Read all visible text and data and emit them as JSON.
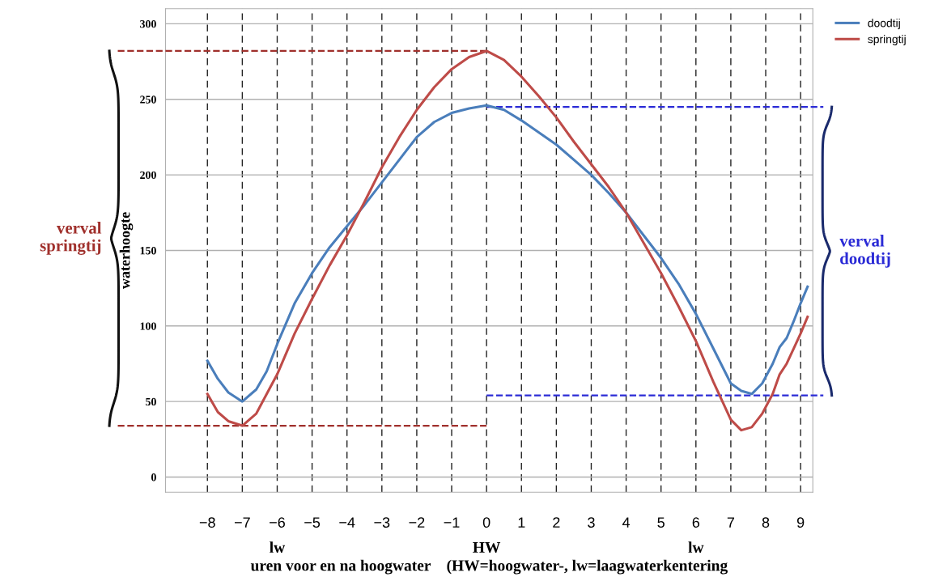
{
  "chart_data": {
    "type": "line",
    "xlabel": "uren voor en na hoogwater    (HW=hoogwater-, lw=laagwaterkentering",
    "ylabel": "waterhoogte",
    "x": [
      -8,
      -7.7,
      -7.4,
      -7,
      -6.6,
      -6.3,
      -6,
      -5.5,
      -5,
      -4.5,
      -4,
      -3.5,
      -3,
      -2.5,
      -2,
      -1.5,
      -1,
      -0.5,
      0,
      0.5,
      1,
      1.5,
      2,
      2.5,
      3,
      3.5,
      4,
      4.5,
      5,
      5.5,
      6,
      6.5,
      7,
      7.3,
      7.6,
      7.9,
      8.2,
      8.4,
      8.6,
      8.8,
      9,
      9.2
    ],
    "series": [
      {
        "name": "doodtij",
        "color": "#4a7ebb",
        "values": [
          77,
          65,
          56,
          50,
          58,
          70,
          88,
          115,
          135,
          152,
          166,
          180,
          195,
          210,
          225,
          235,
          241,
          244,
          246,
          243,
          236,
          228,
          220,
          210,
          200,
          188,
          175,
          160,
          145,
          128,
          108,
          85,
          62,
          57,
          55,
          62,
          75,
          86,
          92,
          103,
          115,
          126
        ]
      },
      {
        "name": "springtij",
        "color": "#be4b48",
        "values": [
          55,
          43,
          37,
          34,
          42,
          55,
          68,
          95,
          118,
          140,
          160,
          182,
          205,
          225,
          243,
          258,
          270,
          278,
          282,
          276,
          265,
          252,
          238,
          222,
          207,
          192,
          175,
          155,
          135,
          113,
          90,
          63,
          38,
          31,
          33,
          42,
          55,
          68,
          75,
          85,
          95,
          106
        ]
      }
    ],
    "xlim": [
      -9.2,
      9.35
    ],
    "xticks": [
      {
        "value": -8,
        "label": "−8"
      },
      {
        "value": -7,
        "label": "−7"
      },
      {
        "value": -6,
        "label": "−6"
      },
      {
        "value": -5,
        "label": "−5"
      },
      {
        "value": -4,
        "label": "−4"
      },
      {
        "value": -3,
        "label": "−3"
      },
      {
        "value": -2,
        "label": "−2"
      },
      {
        "value": -1,
        "label": "−1"
      },
      0,
      1,
      2,
      3,
      4,
      5,
      6,
      7,
      8,
      9
    ],
    "ylim": [
      -10,
      310
    ],
    "yticks": [
      0,
      50,
      100,
      150,
      200,
      250,
      300
    ],
    "grid": true,
    "legend": "top right",
    "marker": "none",
    "line_style": "solid",
    "ref_lines": [
      {
        "axis": "y",
        "value": 282,
        "color": "#a0302c",
        "line_style": "dashed"
      },
      {
        "axis": "y",
        "value": 34,
        "color": "#a0302c",
        "line_style": "dashed"
      },
      {
        "axis": "y",
        "value": 245,
        "color": "#2b2bd6",
        "line_style": "dashed"
      },
      {
        "axis": "y",
        "value": 54,
        "color": "#2b2bd6",
        "line_style": "dashed"
      }
    ],
    "annotations": [
      "verval\nspringtij",
      "verval\ndoodtij",
      "lw",
      "HW",
      "lw"
    ]
  }
}
